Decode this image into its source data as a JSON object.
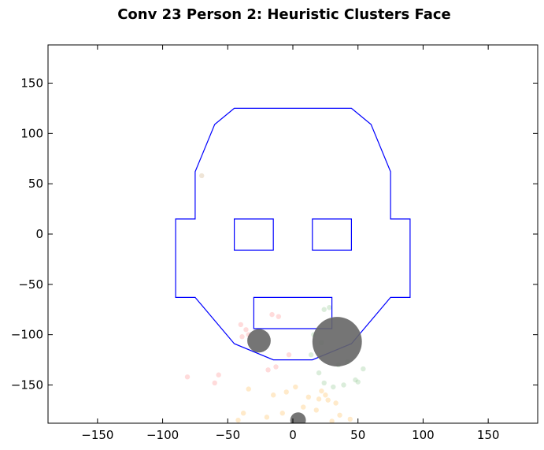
{
  "chart_data": {
    "type": "scatter",
    "title": "Conv 23 Person 2: Heuristic Clusters Face",
    "xlabel": "",
    "ylabel": "",
    "xlim": [
      -188,
      188
    ],
    "ylim": [
      -188,
      188
    ],
    "x_ticks": [
      -150,
      -100,
      -50,
      0,
      50,
      100,
      150
    ],
    "y_ticks": [
      -150,
      -100,
      -50,
      0,
      50,
      100,
      150
    ],
    "x_tick_labels": [
      "−150",
      "−100",
      "−50",
      "0",
      "50",
      "100",
      "150"
    ],
    "y_tick_labels": [
      "−150",
      "−100",
      "−50",
      "0",
      "50",
      "100",
      "150"
    ],
    "grid": false,
    "legend": "none",
    "face_outline": {
      "color": "#0000ff",
      "head": [
        [
          -45,
          125
        ],
        [
          45,
          125
        ],
        [
          60,
          109
        ],
        [
          75,
          62
        ],
        [
          75,
          15
        ],
        [
          90,
          15
        ],
        [
          90,
          -63
        ],
        [
          75,
          -63
        ],
        [
          45,
          -109
        ],
        [
          15,
          -125
        ],
        [
          -15,
          -125
        ],
        [
          -45,
          -109
        ],
        [
          -75,
          -63
        ],
        [
          -90,
          -63
        ],
        [
          -90,
          15
        ],
        [
          -75,
          15
        ],
        [
          -75,
          62
        ],
        [
          -60,
          109
        ]
      ],
      "left_eye": [
        [
          -45,
          15
        ],
        [
          -15,
          15
        ],
        [
          -15,
          -16
        ],
        [
          -45,
          -16
        ]
      ],
      "right_eye": [
        [
          15,
          15
        ],
        [
          45,
          15
        ],
        [
          45,
          -16
        ],
        [
          15,
          -16
        ]
      ],
      "mouth": [
        [
          -30,
          -63
        ],
        [
          30,
          -63
        ],
        [
          30,
          -94
        ],
        [
          -30,
          -94
        ]
      ]
    },
    "clusters": [
      {
        "x": 34,
        "y": -107,
        "size": 38,
        "color": "#666666"
      },
      {
        "x": -26,
        "y": -106,
        "size": 18,
        "color": "#666666"
      },
      {
        "x": 4,
        "y": -185,
        "size": 12,
        "color": "#666666"
      }
    ],
    "faint_points": [
      {
        "x": -70,
        "y": 58,
        "color": "#d2b48c"
      },
      {
        "x": -40,
        "y": -90,
        "color": "#ff9999"
      },
      {
        "x": -36,
        "y": -95,
        "color": "#ff9999"
      },
      {
        "x": -39,
        "y": -102,
        "color": "#ff9999"
      },
      {
        "x": -34,
        "y": -100,
        "color": "#ff9999"
      },
      {
        "x": -16,
        "y": -80,
        "color": "#ff9999"
      },
      {
        "x": -11,
        "y": -82,
        "color": "#ff9999"
      },
      {
        "x": -13,
        "y": -132,
        "color": "#ff9999"
      },
      {
        "x": -19,
        "y": -135,
        "color": "#ff9999"
      },
      {
        "x": -81,
        "y": -142,
        "color": "#ff9999"
      },
      {
        "x": -60,
        "y": -148,
        "color": "#ff9999"
      },
      {
        "x": -57,
        "y": -140,
        "color": "#ff9999"
      },
      {
        "x": -3,
        "y": -120,
        "color": "#ff9999"
      },
      {
        "x": 24,
        "y": -75,
        "color": "#99cc99"
      },
      {
        "x": 28,
        "y": -73,
        "color": "#99cc99"
      },
      {
        "x": 16,
        "y": -100,
        "color": "#99cc99"
      },
      {
        "x": 22,
        "y": -108,
        "color": "#99cc99"
      },
      {
        "x": 14,
        "y": -120,
        "color": "#99cc99"
      },
      {
        "x": 35,
        "y": -130,
        "color": "#99cc99"
      },
      {
        "x": 42,
        "y": -127,
        "color": "#99cc99"
      },
      {
        "x": 54,
        "y": -134,
        "color": "#99cc99"
      },
      {
        "x": 48,
        "y": -145,
        "color": "#99cc99"
      },
      {
        "x": 39,
        "y": -150,
        "color": "#99cc99"
      },
      {
        "x": 24,
        "y": -148,
        "color": "#99cc99"
      },
      {
        "x": 31,
        "y": -152,
        "color": "#99cc99"
      },
      {
        "x": 20,
        "y": -138,
        "color": "#99cc99"
      },
      {
        "x": 50,
        "y": -147,
        "color": "#99cc99"
      },
      {
        "x": 22,
        "y": -156,
        "color": "#ffc266"
      },
      {
        "x": 25,
        "y": -160,
        "color": "#ffc266"
      },
      {
        "x": 20,
        "y": -164,
        "color": "#ffc266"
      },
      {
        "x": 27,
        "y": -165,
        "color": "#ffc266"
      },
      {
        "x": 12,
        "y": -162,
        "color": "#ffc266"
      },
      {
        "x": 33,
        "y": -168,
        "color": "#ffc266"
      },
      {
        "x": 18,
        "y": -175,
        "color": "#ffc266"
      },
      {
        "x": 8,
        "y": -172,
        "color": "#ffc266"
      },
      {
        "x": -8,
        "y": -178,
        "color": "#ffc266"
      },
      {
        "x": -20,
        "y": -182,
        "color": "#ffc266"
      },
      {
        "x": -38,
        "y": -178,
        "color": "#ffc266"
      },
      {
        "x": -42,
        "y": -185,
        "color": "#ffc266"
      },
      {
        "x": -5,
        "y": -157,
        "color": "#ffc266"
      },
      {
        "x": -15,
        "y": -160,
        "color": "#ffc266"
      },
      {
        "x": 2,
        "y": -152,
        "color": "#ffc266"
      },
      {
        "x": -34,
        "y": -154,
        "color": "#ffc266"
      },
      {
        "x": 36,
        "y": -180,
        "color": "#ffc266"
      },
      {
        "x": 44,
        "y": -184,
        "color": "#ffc266"
      },
      {
        "x": 30,
        "y": -186,
        "color": "#ffc266"
      }
    ]
  }
}
